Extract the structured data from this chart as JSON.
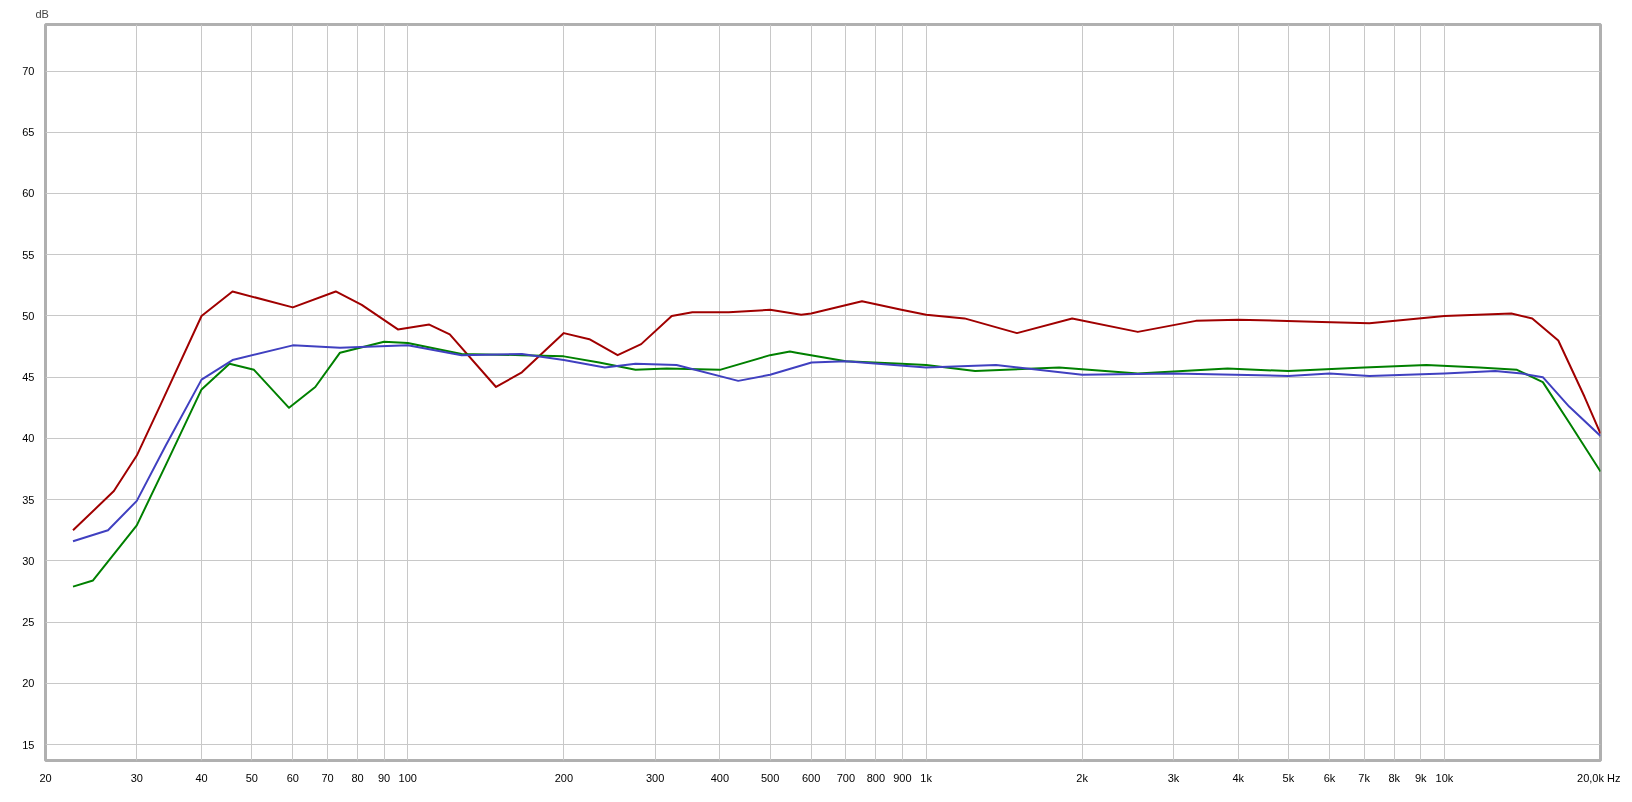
{
  "chart_data": {
    "type": "line",
    "ylabel": "dB",
    "log": "x",
    "grid": true,
    "marker": "none",
    "line_style": "solid",
    "xlim": [
      20,
      20000
    ],
    "ylim": [
      13.7,
      73.8
    ],
    "xticks": [
      20,
      30,
      40,
      50,
      60,
      70,
      80,
      90,
      100,
      200,
      300,
      400,
      500,
      600,
      700,
      800,
      900,
      {
        "value": 1000,
        "label": "1k"
      },
      {
        "value": 2000,
        "label": "2k"
      },
      {
        "value": 3000,
        "label": "3k"
      },
      {
        "value": 4000,
        "label": "4k"
      },
      {
        "value": 5000,
        "label": "5k"
      },
      {
        "value": 6000,
        "label": "6k"
      },
      {
        "value": 7000,
        "label": "7k"
      },
      {
        "value": 8000,
        "label": "8k"
      },
      {
        "value": 9000,
        "label": "9k"
      },
      {
        "value": 10000,
        "label": "10k"
      },
      {
        "value": 20000,
        "label": "20,0k Hz"
      }
    ],
    "yticks": [
      15,
      20,
      25,
      30,
      35,
      40,
      45,
      50,
      55,
      60,
      65,
      70
    ],
    "series": [
      {
        "color": "#a00000",
        "x": [
          22.6,
          27.1,
          30,
          33.3,
          40,
          45.9,
          60,
          72.6,
          81.5,
          95.7,
          110,
          120.5,
          148,
          166,
          200,
          224,
          254,
          282,
          323,
          354,
          416,
          500,
          574,
          600,
          752,
          896,
          1000,
          1186,
          1497,
          1913,
          2561,
          3315,
          4000,
          5800,
          7165,
          10000,
          13460,
          14770,
          16580,
          18630,
          20000
        ],
        "values": [
          32.5,
          35.7,
          38.6,
          42.7,
          50,
          52,
          50.7,
          52,
          50.9,
          48.9,
          49.3,
          48.5,
          44.2,
          45.4,
          48.6,
          48.1,
          46.8,
          47.7,
          50,
          50.3,
          50.3,
          50.5,
          50.1,
          50.2,
          51.2,
          50.5,
          50.1,
          49.8,
          48.6,
          49.8,
          48.7,
          49.6,
          49.7,
          49.5,
          49.4,
          50,
          50.2,
          49.8,
          48,
          43.4,
          40.4
        ]
      },
      {
        "color": "#008000",
        "x": [
          22.6,
          24.7,
          30,
          34.1,
          40,
          45.3,
          50.5,
          59,
          66.3,
          74,
          90,
          100,
          127,
          166,
          200,
          234,
          275,
          316,
          400,
          500,
          546,
          562,
          700,
          896,
          1000,
          1243,
          1806,
          2561,
          3815,
          5000,
          7000,
          9230,
          11670,
          13800,
          15480,
          17400,
          20000
        ],
        "values": [
          27.9,
          28.4,
          32.9,
          37.8,
          44,
          46.1,
          45.6,
          42.5,
          44.2,
          47,
          47.9,
          47.8,
          46.9,
          46.8,
          46.7,
          46.2,
          45.6,
          45.7,
          45.6,
          46.8,
          47.1,
          47,
          46.3,
          46.1,
          46,
          45.5,
          45.8,
          45.3,
          45.7,
          45.5,
          45.8,
          46,
          45.8,
          45.6,
          44.6,
          41.3,
          37.3
        ]
      },
      {
        "color": "#4040c0",
        "x": [
          22.6,
          26.4,
          30,
          34.1,
          40,
          45.9,
          60,
          74,
          100,
          127,
          166,
          200,
          240,
          275,
          330,
          434,
          500,
          601,
          700,
          1000,
          1364,
          2000,
          3000,
          5000,
          6000,
          7165,
          10000,
          12530,
          14100,
          15480,
          17400,
          20000
        ],
        "values": [
          31.6,
          32.5,
          34.9,
          39.4,
          44.8,
          46.4,
          47.6,
          47.4,
          47.6,
          46.8,
          46.9,
          46.4,
          45.8,
          46.1,
          46,
          44.7,
          45.2,
          46.2,
          46.3,
          45.8,
          46,
          45.2,
          45.3,
          45.1,
          45.3,
          45.1,
          45.3,
          45.5,
          45.3,
          45,
          42.6,
          40.2
        ]
      }
    ]
  }
}
